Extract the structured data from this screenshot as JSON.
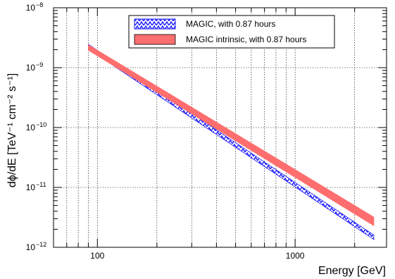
{
  "chart_data": {
    "type": "area",
    "xlabel": "Energy [GeV]",
    "ylabel": "dϕ/dE [TeV⁻¹ cm⁻² s⁻¹]",
    "xscale": "log",
    "yscale": "log",
    "xlim": [
      60,
      2900
    ],
    "ylim": [
      1e-12,
      1e-08
    ],
    "grid": true,
    "legend": "top-right",
    "x_ticks": [
      {
        "value": 100,
        "label": "100"
      },
      {
        "value": 1000,
        "label": "1000"
      }
    ],
    "y_ticks": [
      {
        "value": 1e-12,
        "base": "10",
        "exp": "−12"
      },
      {
        "value": 1e-11,
        "base": "10",
        "exp": "−11"
      },
      {
        "value": 1e-10,
        "base": "10",
        "exp": "−10"
      },
      {
        "value": 1e-09,
        "base": "10",
        "exp": "−9"
      },
      {
        "value": 1e-08,
        "base": "10",
        "exp": "−8"
      }
    ],
    "series": [
      {
        "name": "MAGIC, with 0.87 hours",
        "color": "#1a1aff",
        "style": "hatched",
        "x": [
          90,
          2500
        ],
        "y_low": [
          2.05e-09,
          1.35e-12
        ],
        "y_high": [
          2.45e-09,
          1.6e-12
        ]
      },
      {
        "name": "MAGIC intrinsic, with 0.87 hours",
        "color": "#ff6e6e",
        "style": "filled",
        "x": [
          90,
          2500
        ],
        "y_low": [
          1.95e-09,
          2.3e-12
        ],
        "y_high": [
          2.4e-09,
          3.2e-12
        ]
      }
    ]
  }
}
